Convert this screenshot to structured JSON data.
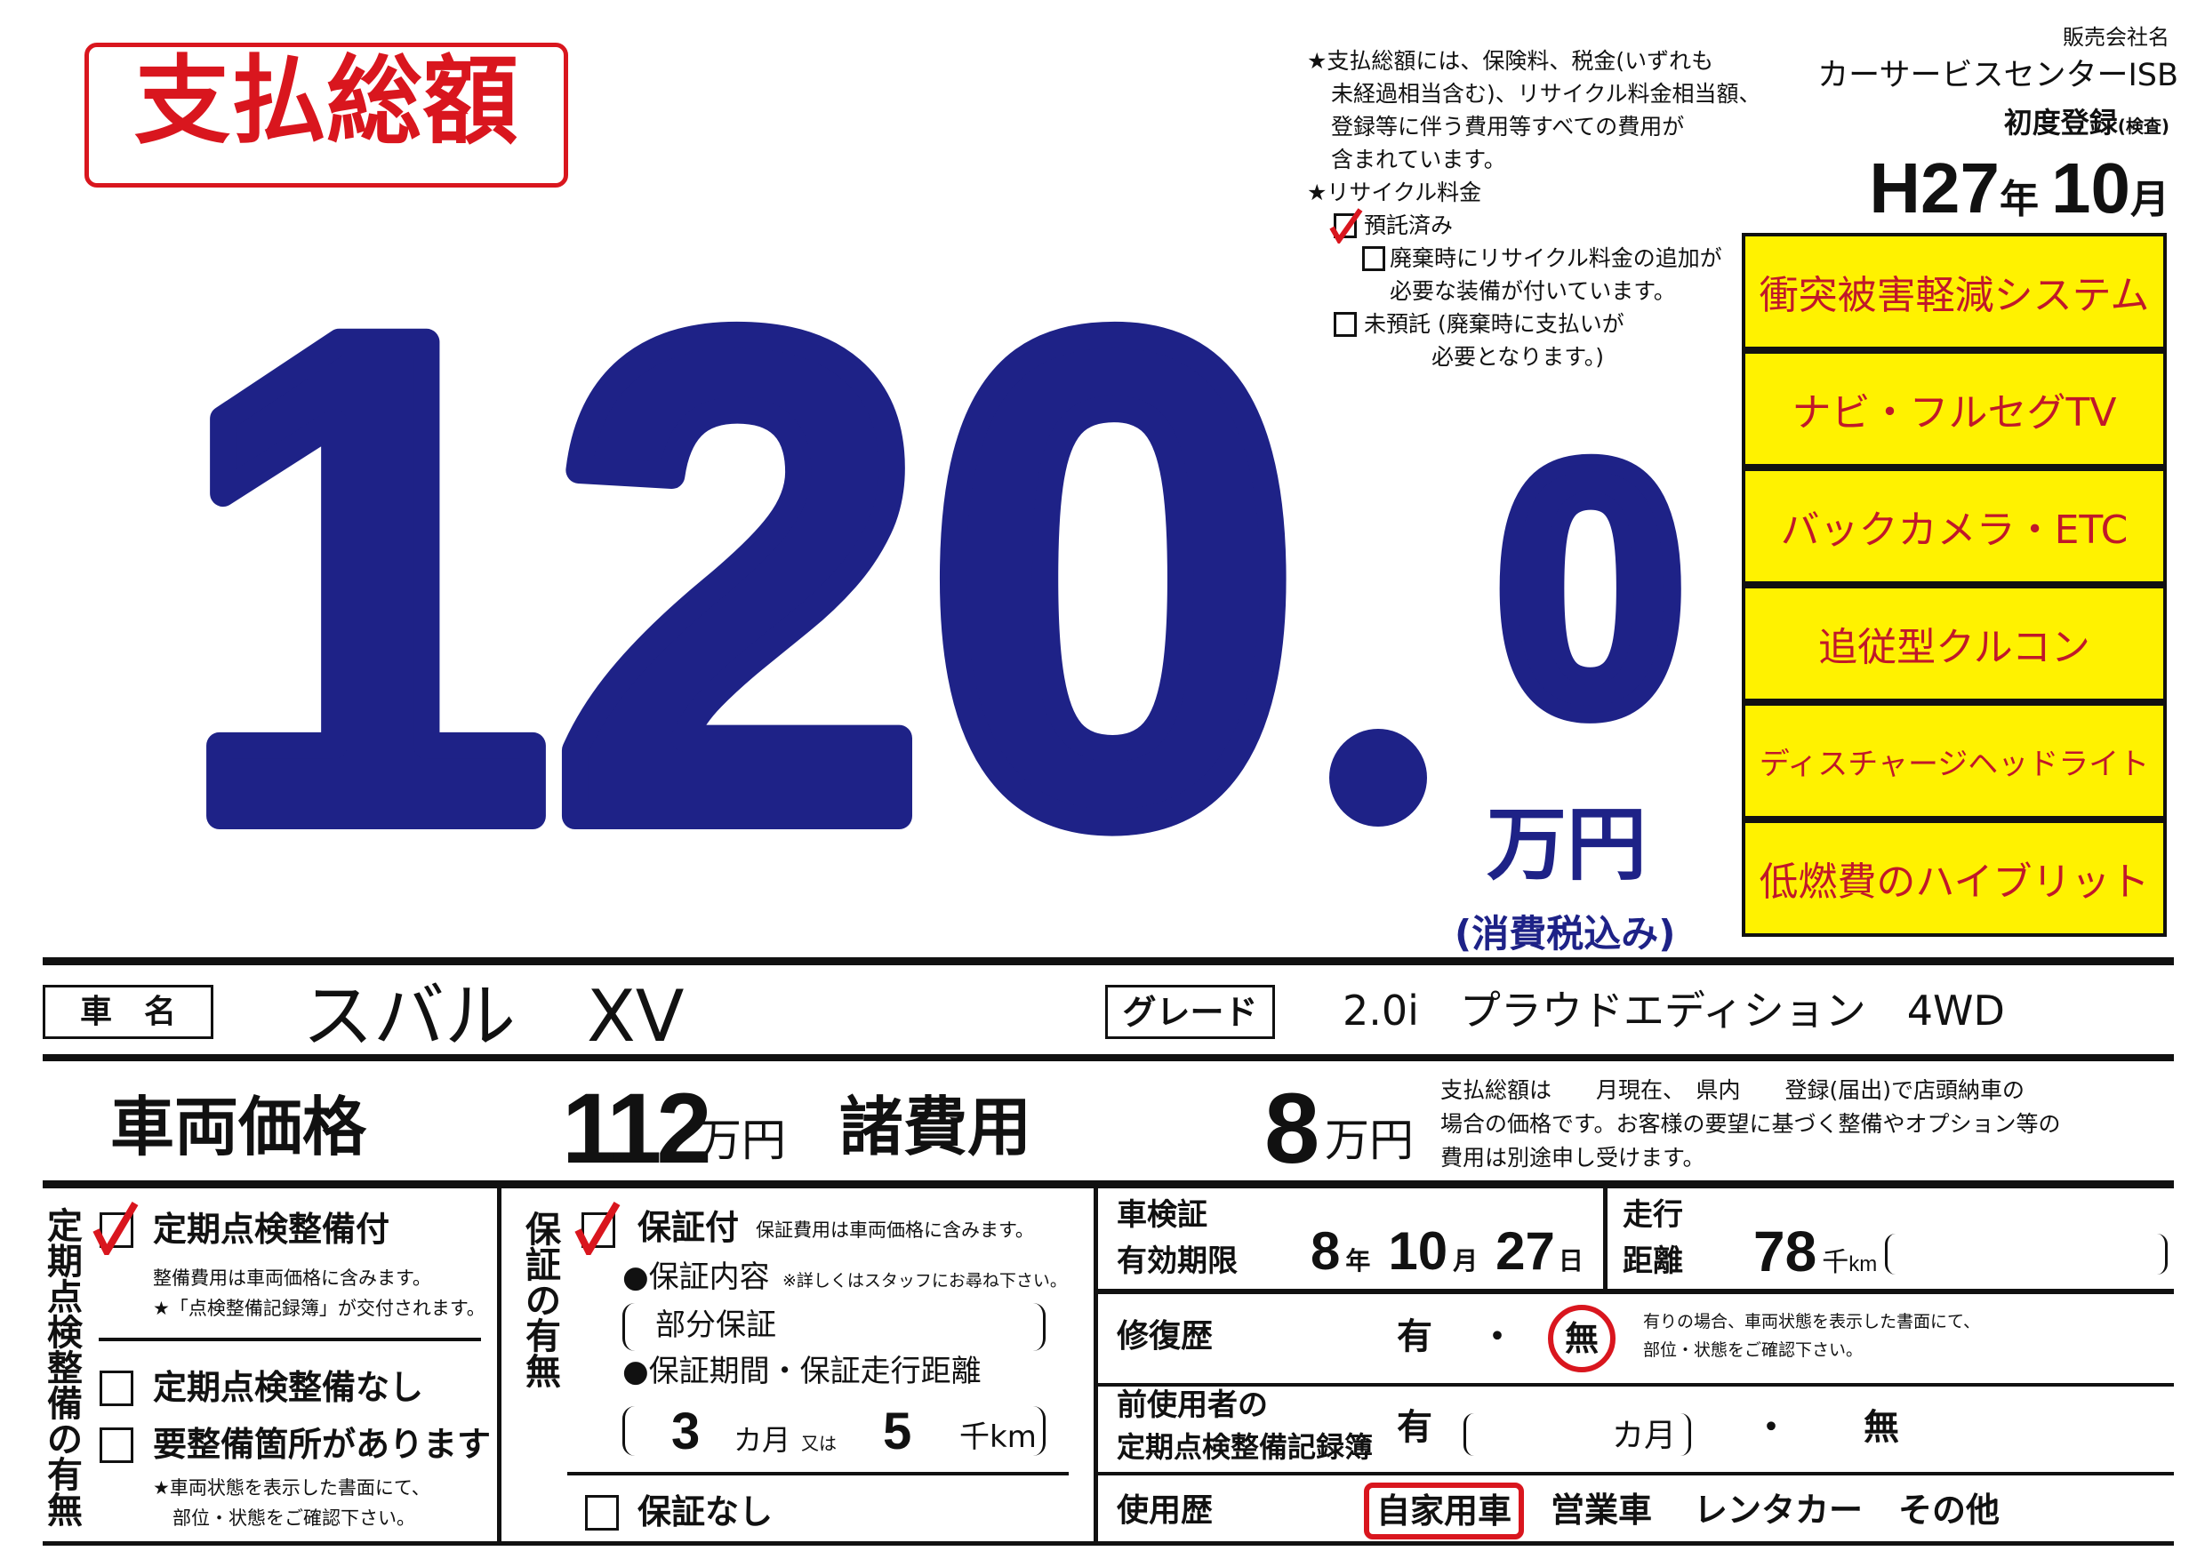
{
  "header": {
    "title": "支払総額",
    "price_integer": "120",
    "price_point": ".",
    "price_decimal": "0",
    "price_unit": "万円",
    "tax_note": "(消費税込み)"
  },
  "notes": {
    "total_lines": [
      "★支払総額には、保険料、税金(いずれも",
      "未経過相当含む)、リサイクル料金相当額、",
      "登録等に伴う費用等すべての費用が",
      "含まれています。"
    ],
    "recycle_title": "★リサイクル料金",
    "recycle_options": [
      {
        "label": "預託済み",
        "checked": true
      },
      {
        "label": "廃棄時にリサイクル料金の追加が",
        "label2": "必要な装備が付いています。",
        "checked": false
      },
      {
        "label": "未預託 (廃棄時に支払いが",
        "label2": "必要となります。)",
        "checked": false
      }
    ]
  },
  "dealer": {
    "label": "販売会社名",
    "name": "カーサービスセンターISB",
    "first_reg_label": "初度登録",
    "first_reg_sub": "(検査)",
    "year": "H27",
    "year_unit": "年",
    "month": "10",
    "month_unit": "月"
  },
  "features": [
    "衝突被害軽減システム",
    "ナビ・フルセグTV",
    "バックカメラ・ETC",
    "追従型クルコン",
    "ディスチャージヘッドライト",
    "低燃費のハイブリット"
  ],
  "colors": {
    "navy": "#1e2287",
    "red": "#d9161e",
    "yellow": "#fff200",
    "feature_text": "#c0182a"
  },
  "car": {
    "name_label": "車　名",
    "name": "スバル　XV",
    "grade_label": "グレード",
    "grade": "2.0i　プラウドエディション　4WD"
  },
  "prices": {
    "vehicle_label": "車両価格",
    "vehicle_value": "112",
    "vehicle_unit": "万円",
    "fees_label": "諸費用",
    "fees_value": "8",
    "fees_unit": "万円",
    "note_lines": [
      "支払総額は　　月現在、　県内　　登録(届出)で店頭納車の",
      "場合の価格です。お客様の要望に基づく整備やオプション等の",
      "費用は別途申し受けます。"
    ]
  },
  "inspection": {
    "vertical_title": "定期点検整備の有無",
    "with_label": "定期点検整備付",
    "with_checked": true,
    "with_notes": [
      "整備費用は車両価格に含みます。",
      "★「点検整備記録簿」が交付されます。"
    ],
    "without_label": "定期点検整備なし",
    "without_checked": false,
    "needs_label": "要整備箇所があります",
    "needs_checked": false,
    "needs_notes": [
      "★車両状態を表示した書面にて、",
      "部位・状態をご確認下さい。"
    ]
  },
  "warranty": {
    "vertical_title": "保証の有無",
    "with_label": "保証付",
    "with_checked": true,
    "with_note": "保証費用は車両価格に含みます。",
    "content_label": "●保証内容",
    "content_note": "※詳しくはスタッフにお尋ね下さい。",
    "content_value": "部分保証",
    "period_label": "●保証期間・保証走行距離",
    "months": "3",
    "months_unit": "カ月",
    "or": "又は",
    "distance": "5",
    "distance_unit": "千km",
    "none_label": "保証なし",
    "none_checked": false
  },
  "details": {
    "shaken_label1": "車検証",
    "shaken_label2": "有効期限",
    "shaken_year": "8",
    "year_unit": "年",
    "shaken_month": "10",
    "month_unit": "月",
    "shaken_day": "27",
    "day_unit": "日",
    "mileage_label1": "走行",
    "mileage_label2": "距離",
    "mileage_value": "78",
    "mileage_unit": "千",
    "mileage_unit2": "km",
    "repair_label": "修復歴",
    "yes": "有",
    "dot": "・",
    "no": "無",
    "repair_selected": "無",
    "repair_note": [
      "有りの場合、車両状態を表示した書面にて、",
      "部位・状態をご確認下さい。"
    ],
    "record_label1": "前使用者の",
    "record_label2": "定期点検整備記録簿",
    "record_months_unit": "カ月",
    "usage_label": "使用歴",
    "usage_options": [
      "自家用車",
      "営業車",
      "レンタカー",
      "その他"
    ],
    "usage_selected": "自家用車"
  }
}
